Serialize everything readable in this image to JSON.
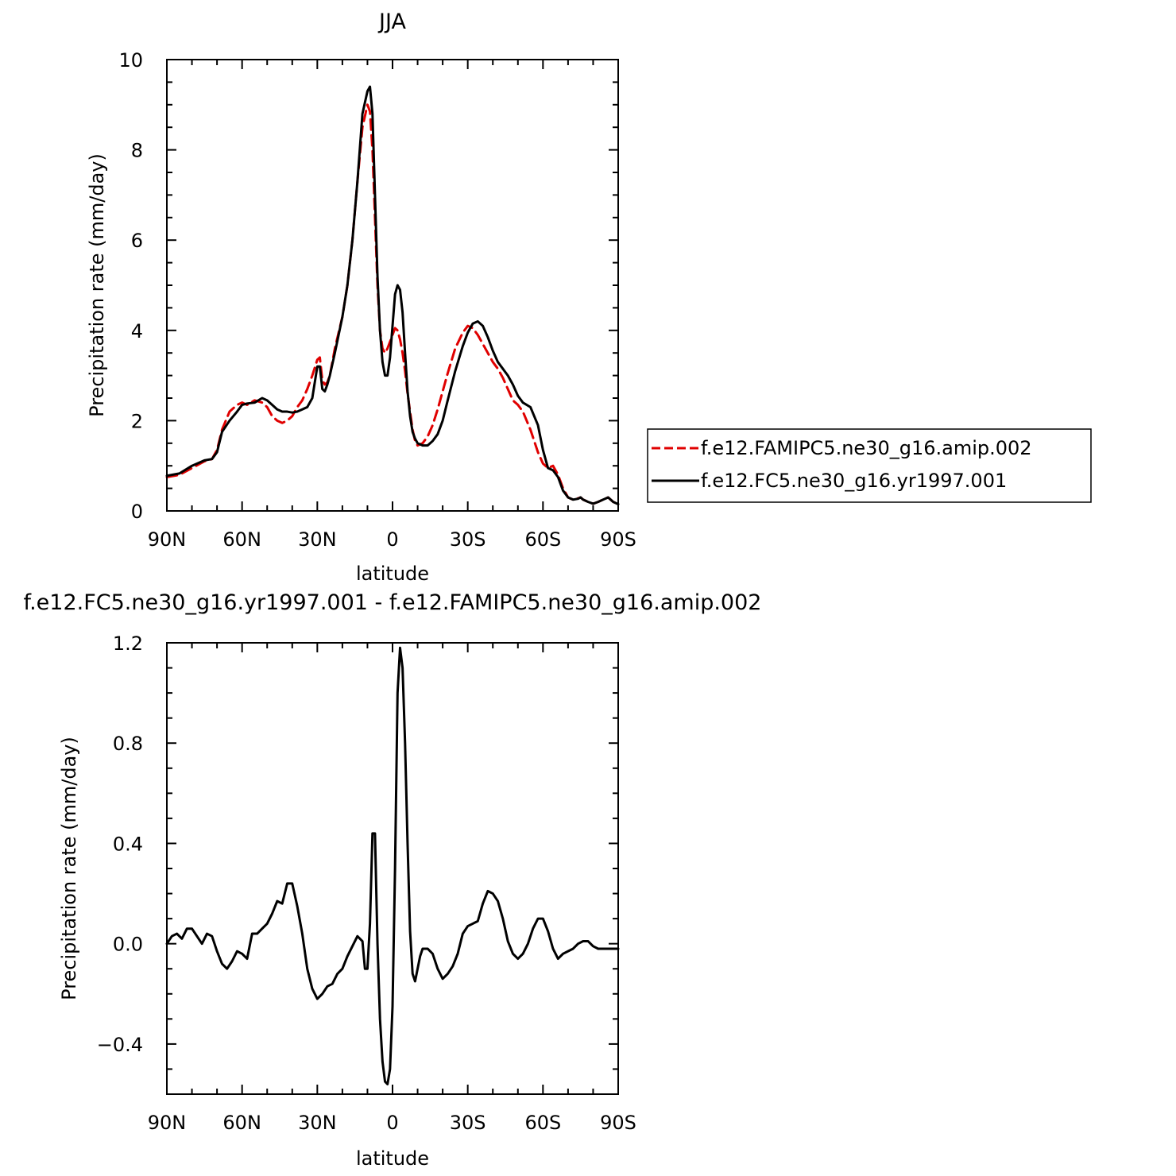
{
  "chart_data": [
    {
      "type": "line",
      "title": "JJA",
      "xlabel": "latitude",
      "ylabel": "Precipitation rate (mm/day)",
      "xlim": [
        90,
        -90
      ],
      "ylim": [
        0,
        10
      ],
      "x_tick_labels": [
        "90N",
        "60N",
        "30N",
        "0",
        "30S",
        "60S",
        "90S"
      ],
      "x_tick_values": [
        90,
        60,
        30,
        0,
        -30,
        -60,
        -90
      ],
      "y_tick_labels": [
        "0",
        "2",
        "4",
        "6",
        "8",
        "10"
      ],
      "y_tick_values": [
        0,
        2,
        4,
        6,
        8,
        10
      ],
      "legend_position": "right",
      "grid": false,
      "series": [
        {
          "name": "f.e12.FAMIPC5.ne30_g16.amip.002",
          "color": "#e00000",
          "dash": "dashed",
          "x": [
            90,
            85,
            80,
            75,
            72,
            70,
            68,
            65,
            62,
            60,
            58,
            55,
            52,
            50,
            48,
            46,
            44,
            42,
            40,
            38,
            36,
            34,
            32,
            30,
            29,
            28,
            27,
            26,
            25,
            23,
            20,
            18,
            16,
            14,
            12,
            10,
            9,
            8,
            7,
            6,
            5,
            4,
            3,
            2,
            1,
            0,
            -1,
            -2,
            -3,
            -4,
            -5,
            -6,
            -7,
            -8,
            -9,
            -10,
            -12,
            -14,
            -16,
            -18,
            -20,
            -22,
            -25,
            -28,
            -30,
            -32,
            -34,
            -36,
            -38,
            -40,
            -42,
            -44,
            -46,
            -48,
            -50,
            -52,
            -55,
            -58,
            -60,
            -62,
            -64,
            -66,
            -68,
            -70,
            -72,
            -74,
            -75,
            -76,
            -78,
            -80,
            -82,
            -84,
            -86,
            -88,
            -90
          ],
          "y": [
            0.75,
            0.8,
            0.95,
            1.1,
            1.15,
            1.35,
            1.8,
            2.2,
            2.35,
            2.4,
            2.35,
            2.45,
            2.4,
            2.3,
            2.1,
            2.0,
            1.95,
            2.0,
            2.1,
            2.3,
            2.45,
            2.7,
            3.0,
            3.35,
            3.4,
            2.9,
            2.8,
            2.85,
            3.0,
            3.6,
            4.3,
            5.0,
            6.0,
            7.3,
            8.5,
            9.0,
            8.85,
            8.0,
            6.5,
            5.0,
            4.0,
            3.6,
            3.5,
            3.6,
            3.75,
            3.9,
            4.05,
            4.0,
            3.8,
            3.5,
            3.1,
            2.6,
            2.2,
            1.8,
            1.55,
            1.45,
            1.5,
            1.65,
            1.9,
            2.25,
            2.65,
            3.05,
            3.6,
            3.95,
            4.1,
            4.05,
            3.9,
            3.7,
            3.5,
            3.3,
            3.15,
            2.95,
            2.7,
            2.45,
            2.35,
            2.2,
            1.8,
            1.3,
            1.05,
            0.95,
            1.0,
            0.8,
            0.5,
            0.3,
            0.25,
            0.28,
            0.3,
            0.25,
            0.2,
            0.16,
            0.2,
            0.25,
            0.3,
            0.2,
            0.15
          ]
        },
        {
          "name": "f.e12.FC5.ne30_g16.yr1997.001",
          "color": "#000000",
          "dash": "solid",
          "x": [
            90,
            85,
            80,
            75,
            72,
            70,
            68,
            65,
            62,
            60,
            58,
            55,
            52,
            50,
            48,
            46,
            44,
            42,
            40,
            38,
            36,
            34,
            32,
            30,
            29,
            28,
            27,
            26,
            25,
            23,
            20,
            18,
            16,
            14,
            12,
            10,
            9,
            8,
            7,
            6,
            5,
            4,
            3,
            2,
            1,
            0,
            -1,
            -2,
            -3,
            -4,
            -5,
            -6,
            -7,
            -8,
            -9,
            -10,
            -12,
            -14,
            -16,
            -18,
            -20,
            -22,
            -25,
            -28,
            -30,
            -32,
            -34,
            -36,
            -38,
            -40,
            -42,
            -44,
            -46,
            -48,
            -50,
            -52,
            -55,
            -58,
            -60,
            -62,
            -64,
            -66,
            -68,
            -70,
            -72,
            -74,
            -75,
            -76,
            -78,
            -80,
            -82,
            -84,
            -86,
            -88,
            -90
          ],
          "y": [
            0.78,
            0.83,
            1.0,
            1.12,
            1.15,
            1.3,
            1.75,
            2.0,
            2.2,
            2.35,
            2.38,
            2.4,
            2.5,
            2.45,
            2.35,
            2.25,
            2.2,
            2.2,
            2.18,
            2.2,
            2.25,
            2.3,
            2.5,
            3.2,
            3.2,
            2.7,
            2.65,
            2.8,
            3.0,
            3.5,
            4.3,
            5.0,
            6.0,
            7.3,
            8.8,
            9.3,
            9.4,
            8.8,
            7.0,
            5.2,
            4.0,
            3.3,
            3.0,
            3.0,
            3.4,
            4.1,
            4.8,
            5.0,
            4.9,
            4.4,
            3.5,
            2.65,
            2.1,
            1.75,
            1.6,
            1.5,
            1.45,
            1.45,
            1.55,
            1.7,
            2.0,
            2.45,
            3.1,
            3.65,
            3.95,
            4.15,
            4.2,
            4.1,
            3.85,
            3.55,
            3.3,
            3.15,
            3.0,
            2.8,
            2.55,
            2.4,
            2.3,
            1.9,
            1.35,
            0.95,
            0.9,
            0.75,
            0.45,
            0.3,
            0.25,
            0.27,
            0.3,
            0.25,
            0.2,
            0.16,
            0.2,
            0.25,
            0.3,
            0.2,
            0.15
          ]
        }
      ]
    },
    {
      "type": "line",
      "title": "f.e12.FC5.ne30_g16.yr1997.001 - f.e12.FAMIPC5.ne30_g16.amip.002",
      "xlabel": "latitude",
      "ylabel": "Precipitation rate (mm/day)",
      "xlim": [
        90,
        -90
      ],
      "ylim": [
        -0.6,
        1.2
      ],
      "x_tick_labels": [
        "90N",
        "60N",
        "30N",
        "0",
        "30S",
        "60S",
        "90S"
      ],
      "x_tick_values": [
        90,
        60,
        30,
        0,
        -30,
        -60,
        -90
      ],
      "y_tick_labels": [
        "−0.4",
        "0.0",
        "0.4",
        "0.8",
        "1.2"
      ],
      "y_tick_values": [
        -0.4,
        0.0,
        0.4,
        0.8,
        1.2
      ],
      "grid": false,
      "series": [
        {
          "color": "#000000",
          "dash": "solid",
          "x": [
            90,
            88,
            86,
            84,
            82,
            80,
            78,
            76,
            74,
            72,
            70,
            68,
            66,
            64,
            62,
            60,
            58,
            56,
            54,
            52,
            50,
            48,
            46,
            44,
            42,
            40,
            38,
            36,
            34,
            32,
            30,
            28,
            26,
            24,
            22,
            20,
            18,
            16,
            14,
            12,
            11,
            10,
            9,
            8,
            7,
            6,
            5,
            4,
            3,
            2,
            1,
            0,
            -1,
            -2,
            -3,
            -4,
            -5,
            -6,
            -7,
            -8,
            -9,
            -10,
            -11,
            -12,
            -14,
            -16,
            -18,
            -20,
            -22,
            -24,
            -26,
            -28,
            -30,
            -32,
            -34,
            -36,
            -38,
            -40,
            -42,
            -44,
            -46,
            -48,
            -50,
            -52,
            -54,
            -56,
            -58,
            -60,
            -62,
            -64,
            -66,
            -68,
            -70,
            -72,
            -74,
            -76,
            -78,
            -80,
            -82,
            -84,
            -86,
            -88,
            -90
          ],
          "y": [
            0.0,
            0.03,
            0.04,
            0.02,
            0.06,
            0.06,
            0.03,
            0.0,
            0.04,
            0.03,
            -0.03,
            -0.08,
            -0.1,
            -0.07,
            -0.03,
            -0.04,
            -0.06,
            0.04,
            0.04,
            0.06,
            0.08,
            0.12,
            0.17,
            0.16,
            0.24,
            0.24,
            0.15,
            0.04,
            -0.1,
            -0.18,
            -0.22,
            -0.2,
            -0.17,
            -0.16,
            -0.12,
            -0.1,
            -0.05,
            -0.01,
            0.03,
            0.01,
            -0.1,
            -0.1,
            0.08,
            0.44,
            0.44,
            0.0,
            -0.3,
            -0.47,
            -0.55,
            -0.56,
            -0.5,
            -0.25,
            0.3,
            1.0,
            1.18,
            1.1,
            0.8,
            0.4,
            0.05,
            -0.12,
            -0.15,
            -0.1,
            -0.05,
            -0.02,
            -0.02,
            -0.04,
            -0.1,
            -0.14,
            -0.12,
            -0.09,
            -0.04,
            0.04,
            0.07,
            0.08,
            0.09,
            0.16,
            0.21,
            0.2,
            0.17,
            0.1,
            0.01,
            -0.04,
            -0.06,
            -0.04,
            0.0,
            0.06,
            0.1,
            0.1,
            0.05,
            -0.02,
            -0.06,
            -0.04,
            -0.03,
            -0.02,
            0.0,
            0.01,
            0.01,
            -0.01,
            -0.02,
            -0.02,
            -0.02,
            -0.02,
            -0.02
          ]
        }
      ]
    }
  ]
}
